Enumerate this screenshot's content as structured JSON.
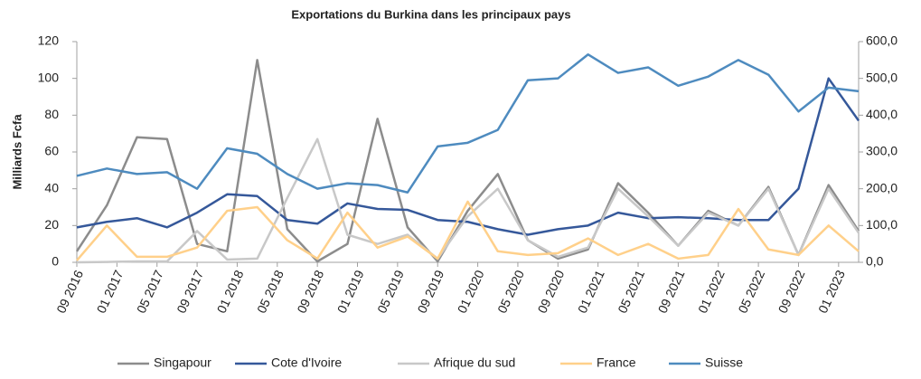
{
  "chart_data": {
    "type": "line",
    "title": "Exportations du Burkina dans les principaux pays",
    "y_label": "Milliards Fcfa",
    "x": [
      "2016-09",
      "2016-12",
      "2017-03",
      "2017-06",
      "2017-09",
      "2017-12",
      "2018-03",
      "2018-06",
      "2018-09",
      "2018-12",
      "2019-03",
      "2019-06",
      "2019-09",
      "2019-12",
      "2020-03",
      "2020-06",
      "2020-09",
      "2020-12",
      "2021-03",
      "2021-06",
      "2021-09",
      "2021-12",
      "2022-03",
      "2022-06",
      "2022-09",
      "2022-12",
      "2023-03"
    ],
    "xticks": [
      "09 2016",
      "01 2017",
      "05 2017",
      "09 2017",
      "01 2018",
      "05 2018",
      "09 2018",
      "01 2019",
      "05 2019",
      "09 2019",
      "01 2020",
      "05 2020",
      "09 2020",
      "01 2021",
      "05 2021",
      "09 2021",
      "01 2022",
      "05 2022",
      "09 2022",
      "01 2023"
    ],
    "ylim": [
      0,
      120
    ],
    "yticks": [
      0,
      20,
      40,
      60,
      80,
      100,
      120
    ],
    "y2lim": [
      0,
      600
    ],
    "y2ticks": [
      {
        "value": 0,
        "label": "0,0"
      },
      {
        "value": 100,
        "label": "100,0"
      },
      {
        "value": 200,
        "label": "200,0"
      },
      {
        "value": 300,
        "label": "300,0"
      },
      {
        "value": 400,
        "label": "400,0"
      },
      {
        "value": 500,
        "label": "500,0"
      },
      {
        "value": 600,
        "label": "600,0"
      }
    ],
    "grid": false,
    "legend": "bottom",
    "series": [
      {
        "name": "Singapour",
        "color": "#8c8c8c",
        "values": [
          6,
          31,
          68,
          67,
          10,
          6,
          110,
          18,
          0.5,
          10,
          78,
          19,
          0.5,
          28,
          48,
          12,
          2,
          7,
          43,
          27,
          9,
          28,
          20,
          41,
          4,
          42,
          17
        ]
      },
      {
        "name": "Cote d'Ivoire",
        "color": "#35589a",
        "values": [
          19,
          22,
          24,
          19,
          27,
          37,
          36,
          23,
          21,
          32,
          29,
          28.5,
          23,
          22,
          18,
          15,
          18,
          20,
          27,
          24,
          24.5,
          24,
          23,
          23,
          40,
          100,
          77
        ]
      },
      {
        "name": "Afrique du sud",
        "color": "#c8c8c8",
        "values": [
          0,
          0.2,
          0.5,
          0.5,
          17,
          1.5,
          2,
          35,
          67,
          15,
          10,
          15,
          2,
          25,
          40,
          12,
          3,
          8,
          40,
          25,
          9,
          27,
          20,
          40,
          4,
          40,
          16
        ]
      },
      {
        "name": "France",
        "color": "#ffd08a",
        "values": [
          1,
          20,
          3,
          3,
          8,
          28,
          30,
          12,
          2,
          27,
          8,
          14,
          2,
          33,
          6,
          4,
          5,
          13,
          4,
          10,
          2,
          4,
          29,
          7,
          4,
          20,
          6
        ]
      },
      {
        "name": "Suisse",
        "color": "#4e8bbf",
        "axis": "y2",
        "values": [
          235,
          255,
          240,
          245,
          200,
          310,
          295,
          240,
          200,
          215,
          210,
          190,
          315,
          325,
          360,
          495,
          500,
          565,
          515,
          530,
          480,
          505,
          550,
          510,
          410,
          475,
          465
        ]
      }
    ]
  }
}
